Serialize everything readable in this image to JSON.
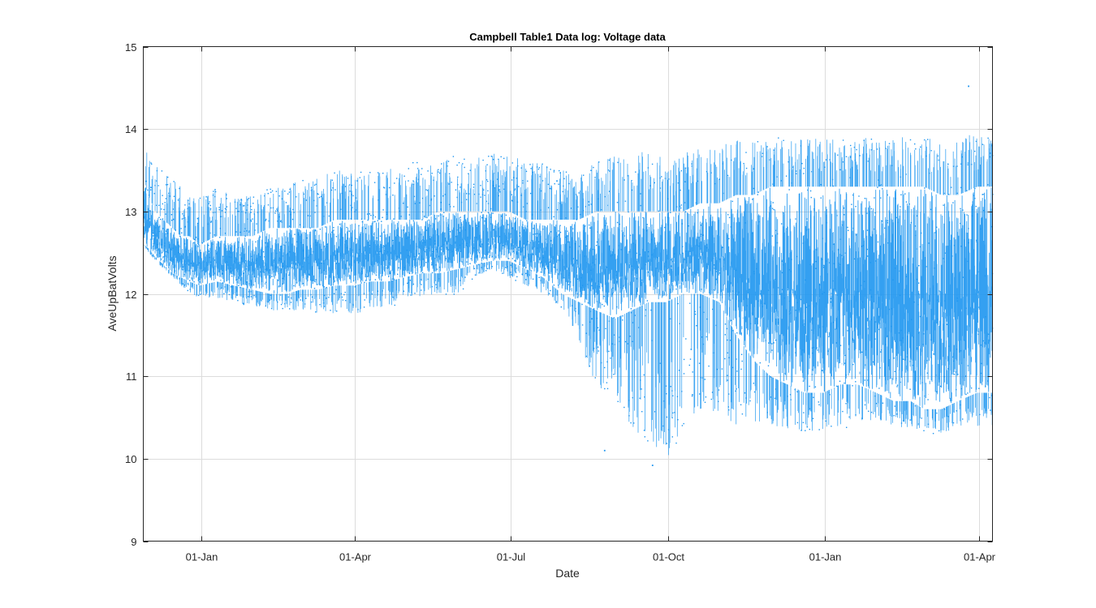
{
  "chart_data": {
    "type": "scatter",
    "title": "Campbell Table1 Data log: Voltage data",
    "xlabel": "Date",
    "ylabel": "AveUpBatVolts",
    "ylim": [
      9,
      15
    ],
    "yticks": [
      9,
      10,
      11,
      12,
      13,
      14,
      15
    ],
    "xlim": [
      "2017-11-28",
      "2019-04-09"
    ],
    "xticks": [
      {
        "date": "2018-01-01",
        "label": "01-Jan"
      },
      {
        "date": "2018-04-01",
        "label": "01-Apr"
      },
      {
        "date": "2018-07-01",
        "label": "01-Jul"
      },
      {
        "date": "2018-10-01",
        "label": "01-Oct"
      },
      {
        "date": "2019-01-01",
        "label": "01-Jan"
      },
      {
        "date": "2019-04-01",
        "label": "01-Apr"
      }
    ],
    "grid": true,
    "marker_color": "#1e96f0",
    "series": [
      {
        "x": [
          "2017-11-28",
          "2017-12-01",
          "2017-12-05",
          "2017-12-10",
          "2017-12-15",
          "2017-12-20",
          "2017-12-25",
          "2017-12-31",
          "2018-01-10",
          "2018-01-20",
          "2018-01-31",
          "2018-02-10",
          "2018-02-20",
          "2018-02-28",
          "2018-03-10",
          "2018-03-20",
          "2018-03-31",
          "2018-04-10",
          "2018-04-20",
          "2018-04-30",
          "2018-05-10",
          "2018-05-20",
          "2018-05-31",
          "2018-06-10",
          "2018-06-20",
          "2018-06-30",
          "2018-07-10",
          "2018-07-20",
          "2018-07-31",
          "2018-08-10",
          "2018-08-20",
          "2018-08-31",
          "2018-09-10",
          "2018-09-20",
          "2018-09-30",
          "2018-10-10",
          "2018-10-20",
          "2018-10-31",
          "2018-11-10",
          "2018-11-20",
          "2018-11-30",
          "2018-12-10",
          "2018-12-20",
          "2018-12-31",
          "2019-01-10",
          "2019-01-20",
          "2019-01-31",
          "2019-02-10",
          "2019-02-20",
          "2019-02-28",
          "2019-03-10",
          "2019-03-20",
          "2019-03-31",
          "2019-04-09"
        ],
        "low": [
          12.6,
          12.5,
          12.4,
          12.3,
          12.2,
          12.1,
          12.0,
          11.95,
          11.95,
          11.9,
          11.85,
          11.8,
          11.8,
          11.8,
          11.75,
          11.75,
          11.75,
          11.8,
          11.85,
          11.9,
          11.95,
          12.0,
          12.0,
          12.2,
          12.3,
          12.2,
          12.1,
          12.0,
          11.8,
          11.4,
          10.9,
          10.6,
          10.4,
          10.1,
          10.0,
          10.3,
          10.6,
          10.5,
          10.4,
          10.4,
          10.35,
          10.3,
          10.3,
          10.3,
          10.35,
          10.4,
          10.45,
          10.4,
          10.35,
          10.3,
          10.3,
          10.35,
          10.4,
          10.4
        ],
        "high": [
          13.8,
          13.7,
          13.6,
          13.5,
          13.4,
          13.3,
          13.2,
          13.2,
          13.3,
          13.2,
          13.2,
          13.3,
          13.3,
          13.4,
          13.4,
          13.5,
          13.5,
          13.5,
          13.5,
          13.6,
          13.6,
          13.6,
          13.7,
          13.7,
          13.7,
          13.7,
          13.6,
          13.6,
          13.5,
          13.5,
          13.6,
          13.7,
          13.7,
          13.8,
          13.6,
          13.7,
          13.8,
          13.8,
          13.9,
          13.9,
          13.9,
          13.9,
          13.9,
          13.9,
          13.9,
          13.9,
          13.9,
          13.9,
          13.9,
          13.9,
          13.9,
          13.9,
          13.95,
          13.9
        ],
        "core_low": [
          12.6,
          12.55,
          12.45,
          12.35,
          12.25,
          12.2,
          12.15,
          12.1,
          12.15,
          12.1,
          12.05,
          12.0,
          12.0,
          12.05,
          12.05,
          12.1,
          12.1,
          12.15,
          12.15,
          12.2,
          12.25,
          12.25,
          12.3,
          12.35,
          12.4,
          12.4,
          12.3,
          12.2,
          12.0,
          11.9,
          11.8,
          11.7,
          11.8,
          11.9,
          11.9,
          12.0,
          12.0,
          11.9,
          11.5,
          11.2,
          11.0,
          10.9,
          10.8,
          10.8,
          10.9,
          10.9,
          10.8,
          10.7,
          10.7,
          10.6,
          10.6,
          10.7,
          10.8,
          10.8
        ],
        "core_high": [
          13.4,
          13.2,
          13.0,
          12.9,
          12.8,
          12.7,
          12.7,
          12.6,
          12.7,
          12.7,
          12.7,
          12.8,
          12.8,
          12.8,
          12.8,
          12.9,
          12.9,
          12.9,
          12.9,
          12.9,
          12.9,
          13.0,
          13.0,
          13.0,
          13.0,
          13.0,
          12.9,
          12.9,
          12.9,
          12.9,
          13.0,
          13.0,
          13.0,
          13.0,
          13.0,
          13.0,
          13.1,
          13.1,
          13.2,
          13.2,
          13.3,
          13.3,
          13.3,
          13.3,
          13.3,
          13.3,
          13.3,
          13.3,
          13.3,
          13.3,
          13.2,
          13.2,
          13.3,
          13.3
        ]
      }
    ],
    "outliers": [
      {
        "x": "2019-03-26",
        "y": 14.52
      },
      {
        "x": "2018-09-22",
        "y": 9.92
      },
      {
        "x": "2018-08-25",
        "y": 10.1
      }
    ]
  }
}
